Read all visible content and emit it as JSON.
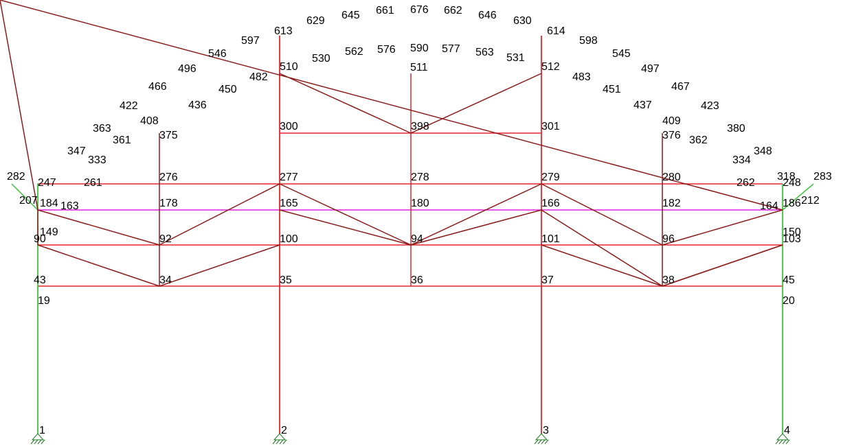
{
  "title": "",
  "colors": {
    "background": "#ffffff",
    "beam": "#e8252b",
    "column": "#3cc43c",
    "brace": "#8b1a1a",
    "arch": "#8b1a1a",
    "arch_chord": "#e020e0",
    "web_diagonal": "#2aa39a",
    "web_vertical": "#1a1a8c",
    "support": "#1a7a1a",
    "text": "#000000"
  },
  "supports": [
    {
      "id": "support-1",
      "label": "1"
    },
    {
      "id": "support-2",
      "label": "2"
    },
    {
      "id": "support-3",
      "label": "3"
    },
    {
      "id": "support-4",
      "label": "4"
    }
  ],
  "node_labels": [
    {
      "text": "19"
    },
    {
      "text": "20"
    },
    {
      "text": "43"
    },
    {
      "text": "34"
    },
    {
      "text": "35"
    },
    {
      "text": "36"
    },
    {
      "text": "37"
    },
    {
      "text": "38"
    },
    {
      "text": "45"
    },
    {
      "text": "90"
    },
    {
      "text": "92"
    },
    {
      "text": "100"
    },
    {
      "text": "94"
    },
    {
      "text": "101"
    },
    {
      "text": "96"
    },
    {
      "text": "103"
    },
    {
      "text": "149"
    },
    {
      "text": "150"
    },
    {
      "text": "207"
    },
    {
      "text": "184"
    },
    {
      "text": "163"
    },
    {
      "text": "178"
    },
    {
      "text": "165"
    },
    {
      "text": "180"
    },
    {
      "text": "166"
    },
    {
      "text": "182"
    },
    {
      "text": "164"
    },
    {
      "text": "186"
    },
    {
      "text": "212"
    },
    {
      "text": "282"
    },
    {
      "text": "283"
    },
    {
      "text": "247"
    },
    {
      "text": "261"
    },
    {
      "text": "276"
    },
    {
      "text": "277"
    },
    {
      "text": "278"
    },
    {
      "text": "279"
    },
    {
      "text": "280"
    },
    {
      "text": "262"
    },
    {
      "text": "248"
    },
    {
      "text": "347"
    },
    {
      "text": "333"
    },
    {
      "text": "363"
    },
    {
      "text": "361"
    },
    {
      "text": "375"
    },
    {
      "text": "422"
    },
    {
      "text": "408"
    },
    {
      "text": "466"
    },
    {
      "text": "436"
    },
    {
      "text": "496"
    },
    {
      "text": "450"
    },
    {
      "text": "546"
    },
    {
      "text": "482"
    },
    {
      "text": "597"
    },
    {
      "text": "613"
    },
    {
      "text": "510"
    },
    {
      "text": "629"
    },
    {
      "text": "530"
    },
    {
      "text": "645"
    },
    {
      "text": "562"
    },
    {
      "text": "661"
    },
    {
      "text": "576"
    },
    {
      "text": "676"
    },
    {
      "text": "590"
    },
    {
      "text": "511"
    },
    {
      "text": "662"
    },
    {
      "text": "577"
    },
    {
      "text": "646"
    },
    {
      "text": "563"
    },
    {
      "text": "630"
    },
    {
      "text": "531"
    },
    {
      "text": "614"
    },
    {
      "text": "512"
    },
    {
      "text": "598"
    },
    {
      "text": "483"
    },
    {
      "text": "545"
    },
    {
      "text": "451"
    },
    {
      "text": "497"
    },
    {
      "text": "437"
    },
    {
      "text": "467"
    },
    {
      "text": "409"
    },
    {
      "text": "423"
    },
    {
      "text": "376"
    },
    {
      "text": "362"
    },
    {
      "text": "380"
    },
    {
      "text": "334"
    },
    {
      "text": "348"
    },
    {
      "text": "318"
    },
    {
      "text": "300"
    },
    {
      "text": "398"
    },
    {
      "text": "301"
    }
  ]
}
